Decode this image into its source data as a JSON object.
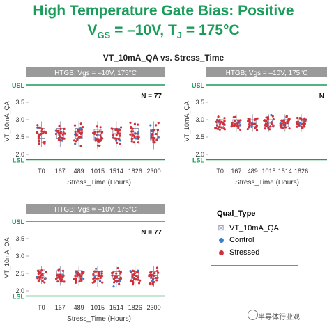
{
  "page": {
    "title_prefix": "High Temperature Gate Bias: Positive",
    "title_vgs": "V",
    "title_vgs_sub": "GS",
    "title_vgs_rest": " = –10V, T",
    "title_tj_sub": "J",
    "title_tj_rest": " = 175°C",
    "subtitle": "VT_10mA_QA vs. Stress_Time",
    "watermark": "半导体行业观"
  },
  "colors": {
    "title": "#1a9c5a",
    "limit": "#1a9c5a",
    "panel_header": "#9a9a9a",
    "control": "#3a7fd0",
    "stressed": "#d0303a",
    "box": "#8a8aa8"
  },
  "legend": {
    "title": "Qual_Type",
    "items": [
      {
        "label": "VT_10mA_QA",
        "kind": "box"
      },
      {
        "label": "Control",
        "kind": "control"
      },
      {
        "label": "Stressed",
        "kind": "stressed"
      }
    ]
  },
  "chart_data": [
    {
      "type": "box",
      "panel_title": "HTGB; Vgs = –10V, 175°C",
      "n_label": "N = 77",
      "xlabel": "Stress_Time (Hours)",
      "ylabel": "VT_10mA_QA",
      "categories": [
        "T0",
        "167",
        "489",
        "1015",
        "1514",
        "1826",
        "2300"
      ],
      "ylim": [
        1.8,
        4.1
      ],
      "yticks": [
        2.0,
        2.5,
        3.0,
        3.5
      ],
      "limits": {
        "USL": 4.0,
        "LSL": 1.85
      },
      "boxes": [
        {
          "q1": 2.45,
          "median": 2.6,
          "q3": 2.75,
          "min": 2.2,
          "max": 2.95
        },
        {
          "q1": 2.45,
          "median": 2.6,
          "q3": 2.75,
          "min": 2.2,
          "max": 2.95
        },
        {
          "q1": 2.45,
          "median": 2.6,
          "q3": 2.75,
          "min": 2.2,
          "max": 2.95
        },
        {
          "q1": 2.42,
          "median": 2.58,
          "q3": 2.72,
          "min": 2.15,
          "max": 2.95
        },
        {
          "q1": 2.45,
          "median": 2.6,
          "q3": 2.75,
          "min": 2.2,
          "max": 2.95
        },
        {
          "q1": 2.45,
          "median": 2.6,
          "q3": 2.75,
          "min": 2.2,
          "max": 2.95
        },
        {
          "q1": 2.42,
          "median": 2.58,
          "q3": 2.72,
          "min": 2.15,
          "max": 2.95
        }
      ]
    },
    {
      "type": "box",
      "panel_title": "HTGB; Vgs = –10V, 175°C",
      "n_label": "N",
      "xlabel": "Stress_Time (Hours)",
      "ylabel": "VT_10mA_QA",
      "categories": [
        "T0",
        "167",
        "489",
        "1015",
        "1514",
        "1826"
      ],
      "ylim": [
        1.8,
        4.1
      ],
      "yticks": [
        2.0,
        2.5,
        3.0,
        3.5
      ],
      "limits": {
        "USL": 4.0,
        "LSL": 1.85
      },
      "boxes": [
        {
          "q1": 2.8,
          "median": 2.9,
          "q3": 3.0,
          "min": 2.65,
          "max": 3.15
        },
        {
          "q1": 2.8,
          "median": 2.9,
          "q3": 3.0,
          "min": 2.65,
          "max": 3.15
        },
        {
          "q1": 2.8,
          "median": 2.9,
          "q3": 3.0,
          "min": 2.65,
          "max": 3.15
        },
        {
          "q1": 2.8,
          "median": 2.9,
          "q3": 3.0,
          "min": 2.65,
          "max": 3.15
        },
        {
          "q1": 2.8,
          "median": 2.9,
          "q3": 3.0,
          "min": 2.65,
          "max": 3.15
        },
        {
          "q1": 2.8,
          "median": 2.9,
          "q3": 3.0,
          "min": 2.65,
          "max": 3.15
        }
      ]
    },
    {
      "type": "box",
      "panel_title": "HTGB; Vgs = –10V, 175°C",
      "n_label": "N = 77",
      "xlabel": "Stress_Time (Hours)",
      "ylabel": "VT_10mA_QA",
      "categories": [
        "T0",
        "167",
        "489",
        "1015",
        "1514",
        "1826",
        "2300"
      ],
      "ylim": [
        1.8,
        4.1
      ],
      "yticks": [
        2.0,
        2.5,
        3.0,
        3.5
      ],
      "limits": {
        "USL": 4.0,
        "LSL": 1.85
      },
      "boxes": [
        {
          "q1": 2.4,
          "median": 2.5,
          "q3": 2.6,
          "min": 2.2,
          "max": 2.7
        },
        {
          "q1": 2.38,
          "median": 2.48,
          "q3": 2.58,
          "min": 2.15,
          "max": 2.7
        },
        {
          "q1": 2.38,
          "median": 2.48,
          "q3": 2.58,
          "min": 2.15,
          "max": 2.7
        },
        {
          "q1": 2.35,
          "median": 2.45,
          "q3": 2.55,
          "min": 2.1,
          "max": 2.7
        },
        {
          "q1": 2.35,
          "median": 2.45,
          "q3": 2.55,
          "min": 2.1,
          "max": 2.7
        },
        {
          "q1": 2.35,
          "median": 2.45,
          "q3": 2.55,
          "min": 2.1,
          "max": 2.7
        },
        {
          "q1": 2.35,
          "median": 2.45,
          "q3": 2.55,
          "min": 2.1,
          "max": 2.7
        }
      ]
    }
  ]
}
